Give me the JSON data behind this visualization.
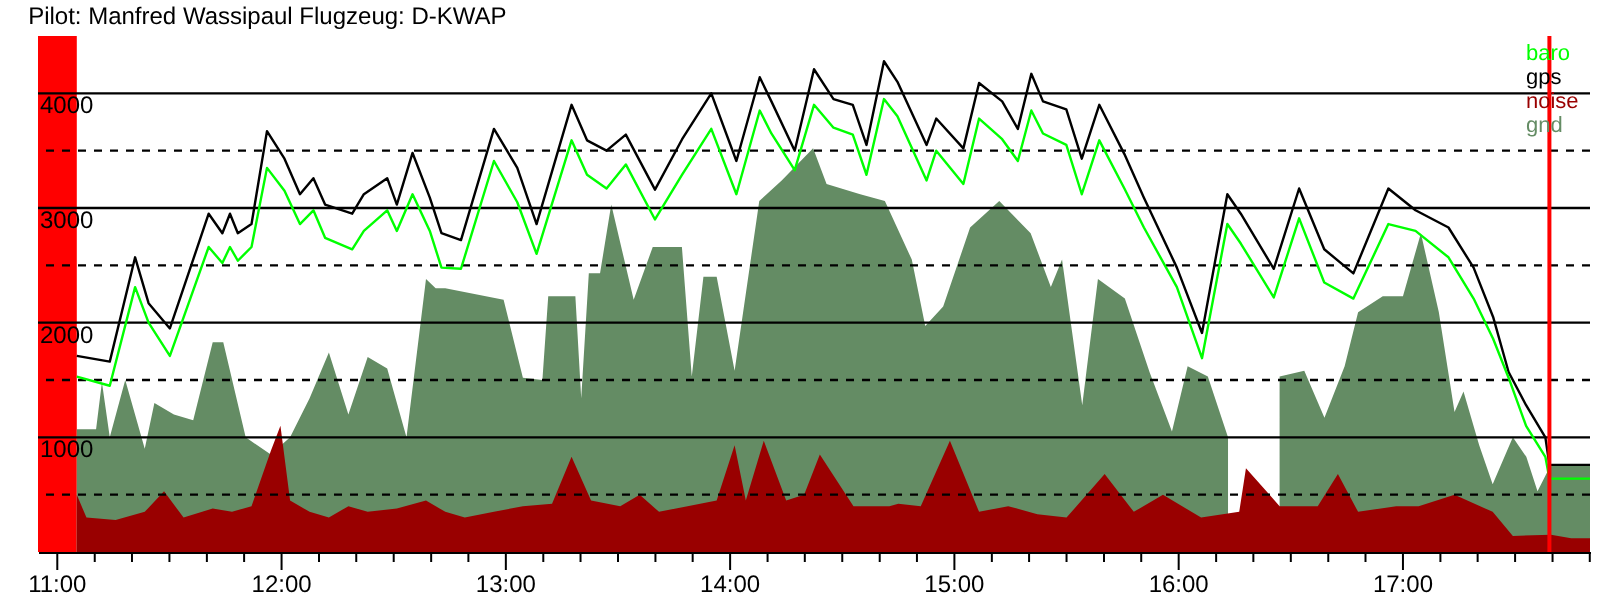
{
  "chart_data": {
    "type": "line",
    "title": "Pilot: Manfred Wassipaul Flugzeug: D-KWAP",
    "x": [
      11.087,
      11.234,
      11.347,
      11.407,
      11.502,
      11.675,
      11.736,
      11.77,
      11.805,
      11.866,
      11.935,
      12.013,
      12.082,
      12.142,
      12.194,
      12.315,
      12.367,
      12.471,
      12.514,
      12.584,
      12.661,
      12.713,
      12.8,
      12.947,
      13.051,
      13.137,
      13.293,
      13.362,
      13.449,
      13.535,
      13.665,
      13.786,
      13.916,
      14.028,
      14.132,
      14.184,
      14.288,
      14.374,
      14.461,
      14.547,
      14.608,
      14.686,
      14.746,
      14.876,
      14.919,
      15.04,
      15.11,
      15.213,
      15.283,
      15.343,
      15.395,
      15.499,
      15.568,
      15.646,
      15.758,
      15.845,
      15.992,
      16.104,
      16.217,
      16.277,
      16.424,
      16.537,
      16.649,
      16.779,
      16.935,
      17.056,
      17.203,
      17.315,
      17.402,
      17.471,
      17.549,
      17.635,
      17.653,
      17.834
    ],
    "series": [
      {
        "name": "gnd",
        "type": "area",
        "color": "#648c64",
        "x": [
          11.087,
          11.173,
          11.199,
          11.234,
          11.303,
          11.39,
          11.433,
          11.52,
          11.606,
          11.693,
          11.74,
          11.84,
          11.952,
          12.038,
          12.125,
          12.211,
          12.298,
          12.384,
          12.471,
          12.557,
          12.644,
          12.687,
          12.73,
          12.99,
          13.076,
          13.163,
          13.189,
          13.31,
          13.336,
          13.37,
          13.42,
          13.47,
          13.57,
          13.655,
          13.785,
          13.829,
          13.881,
          13.94,
          14.02,
          14.13,
          14.23,
          14.37,
          14.43,
          14.58,
          14.69,
          14.81,
          14.87,
          14.95,
          15.07,
          15.2,
          15.34,
          15.43,
          15.48,
          15.57,
          15.64,
          15.76,
          15.87,
          15.97,
          16.04,
          16.13,
          16.22,
          16.29,
          16.39,
          16.45,
          16.56,
          16.65,
          16.74,
          16.8,
          16.91,
          17.0,
          17.08,
          17.16,
          17.23,
          17.27,
          17.34,
          17.4,
          17.49,
          17.55,
          17.6,
          17.66,
          17.834
        ],
        "values": [
          1070,
          1070,
          1480,
          1000,
          1500,
          900,
          1300,
          1200,
          1150,
          1830,
          1830,
          1000,
          850,
          1000,
          1340,
          1740,
          1200,
          1700,
          1600,
          1000,
          2380,
          2300,
          2300,
          2200,
          1520,
          1500,
          2230,
          2230,
          1340,
          2430,
          2430,
          3030,
          2200,
          2660,
          2660,
          1530,
          2400,
          2400,
          1580,
          3060,
          3240,
          3520,
          3210,
          3120,
          3060,
          2550,
          1970,
          2140,
          2830,
          3060,
          2780,
          2310,
          2550,
          1280,
          2380,
          2210,
          1570,
          1050,
          1620,
          1530,
          1000,
          null,
          null,
          1530,
          1580,
          1170,
          1620,
          2090,
          2230,
          2230,
          2780,
          2090,
          1220,
          1400,
          930,
          590,
          1000,
          830,
          530,
          760,
          760
        ]
      },
      {
        "name": "noise",
        "type": "area",
        "color": "#990000",
        "x": [
          11.087,
          11.13,
          11.26,
          11.39,
          11.476,
          11.563,
          11.693,
          11.779,
          11.866,
          11.952,
          11.995,
          12.038,
          12.125,
          12.211,
          12.298,
          12.384,
          12.514,
          12.644,
          12.73,
          12.817,
          12.947,
          13.076,
          13.206,
          13.293,
          13.38,
          13.51,
          13.597,
          13.683,
          13.81,
          13.94,
          14.02,
          14.07,
          14.15,
          14.25,
          14.33,
          14.4,
          14.55,
          14.71,
          14.75,
          14.85,
          14.98,
          15.11,
          15.24,
          15.37,
          15.5,
          15.67,
          15.8,
          15.93,
          16.1,
          16.27,
          16.3,
          16.45,
          16.62,
          16.71,
          16.8,
          16.97,
          17.07,
          17.23,
          17.4,
          17.49,
          17.66,
          17.75,
          17.834
        ],
        "values": [
          500,
          300,
          280,
          350,
          530,
          300,
          380,
          350,
          400,
          880,
          1100,
          450,
          350,
          300,
          400,
          350,
          380,
          450,
          350,
          300,
          350,
          400,
          420,
          830,
          450,
          400,
          500,
          350,
          400,
          450,
          930,
          450,
          970,
          450,
          500,
          850,
          400,
          400,
          420,
          400,
          970,
          350,
          400,
          330,
          300,
          680,
          350,
          500,
          300,
          350,
          730,
          400,
          400,
          680,
          350,
          400,
          400,
          500,
          350,
          140,
          150,
          120,
          120
        ]
      },
      {
        "name": "gps",
        "color": "#000000",
        "values": [
          1710,
          1660,
          2570,
          2170,
          1950,
          2950,
          2780,
          2950,
          2780,
          2860,
          3670,
          3430,
          3120,
          3260,
          3030,
          2950,
          3120,
          3260,
          3030,
          3480,
          3090,
          2780,
          2720,
          3690,
          3350,
          2860,
          3900,
          3590,
          3500,
          3640,
          3160,
          3600,
          4000,
          3410,
          4140,
          3930,
          3500,
          4210,
          3950,
          3900,
          3550,
          4280,
          4100,
          3550,
          3780,
          3520,
          4090,
          3930,
          3690,
          4170,
          3930,
          3860,
          3430,
          3900,
          3470,
          3090,
          2480,
          1910,
          3120,
          2950,
          2470,
          3170,
          2640,
          2430,
          3170,
          2980,
          2830,
          2480,
          2050,
          1570,
          1280,
          1000,
          760,
          760
        ]
      },
      {
        "name": "baro",
        "color": "#00ff00",
        "values": [
          1530,
          1450,
          2310,
          2000,
          1710,
          2660,
          2520,
          2660,
          2540,
          2660,
          3350,
          3150,
          2860,
          2980,
          2740,
          2640,
          2800,
          2980,
          2800,
          3120,
          2800,
          2480,
          2470,
          3410,
          3050,
          2600,
          3590,
          3290,
          3170,
          3380,
          2900,
          3290,
          3690,
          3120,
          3850,
          3650,
          3330,
          3900,
          3700,
          3640,
          3290,
          3950,
          3800,
          3240,
          3500,
          3210,
          3780,
          3600,
          3410,
          3850,
          3650,
          3550,
          3120,
          3590,
          3170,
          2830,
          2310,
          1690,
          2860,
          2690,
          2220,
          2910,
          2350,
          2210,
          2860,
          2800,
          2570,
          2210,
          1860,
          1520,
          1100,
          830,
          640,
          640
        ]
      }
    ],
    "xlim": [
      10.914,
      17.834
    ],
    "xticks": [
      {
        "value": 11,
        "label": "11:00"
      },
      {
        "value": 11.167,
        "label": null
      },
      {
        "value": 11.333,
        "label": null
      },
      {
        "value": 11.5,
        "label": null
      },
      {
        "value": 11.667,
        "label": null
      },
      {
        "value": 11.833,
        "label": null
      },
      {
        "value": 12,
        "label": "12:00"
      },
      {
        "value": 12.167,
        "label": null
      },
      {
        "value": 12.333,
        "label": null
      },
      {
        "value": 12.5,
        "label": null
      },
      {
        "value": 12.667,
        "label": null
      },
      {
        "value": 12.833,
        "label": null
      },
      {
        "value": 13,
        "label": "13:00"
      },
      {
        "value": 13.167,
        "label": null
      },
      {
        "value": 13.333,
        "label": null
      },
      {
        "value": 13.5,
        "label": null
      },
      {
        "value": 13.667,
        "label": null
      },
      {
        "value": 13.833,
        "label": null
      },
      {
        "value": 14,
        "label": "14:00"
      },
      {
        "value": 14.167,
        "label": null
      },
      {
        "value": 14.333,
        "label": null
      },
      {
        "value": 14.5,
        "label": null
      },
      {
        "value": 14.667,
        "label": null
      },
      {
        "value": 14.833,
        "label": null
      },
      {
        "value": 15,
        "label": "15:00"
      },
      {
        "value": 15.167,
        "label": null
      },
      {
        "value": 15.333,
        "label": null
      },
      {
        "value": 15.5,
        "label": null
      },
      {
        "value": 15.667,
        "label": null
      },
      {
        "value": 15.833,
        "label": null
      },
      {
        "value": 16,
        "label": "16:00"
      },
      {
        "value": 16.167,
        "label": null
      },
      {
        "value": 16.333,
        "label": null
      },
      {
        "value": 16.5,
        "label": null
      },
      {
        "value": 16.667,
        "label": null
      },
      {
        "value": 16.833,
        "label": null
      },
      {
        "value": 17,
        "label": "17:00"
      },
      {
        "value": 17.167,
        "label": null
      },
      {
        "value": 17.333,
        "label": null
      },
      {
        "value": 17.5,
        "label": null
      },
      {
        "value": 17.667,
        "label": null
      },
      {
        "value": 17.833,
        "label": null
      }
    ],
    "ylim": [
      0,
      4500
    ],
    "yticks": [
      {
        "value": 500,
        "label": null
      },
      1000,
      {
        "value": 1500,
        "label": null
      },
      2000,
      {
        "value": 2500,
        "label": null
      },
      3000,
      {
        "value": 3500,
        "label": null
      },
      4000
    ],
    "grid": "y",
    "legend": "top right",
    "bands": [
      {
        "axis": "x",
        "from": 10.914,
        "to": 11.087,
        "color": "#ff0000"
      }
    ],
    "ref_lines": [
      {
        "axis": "x",
        "value": 17.653,
        "color": "#ff0000"
      }
    ]
  }
}
